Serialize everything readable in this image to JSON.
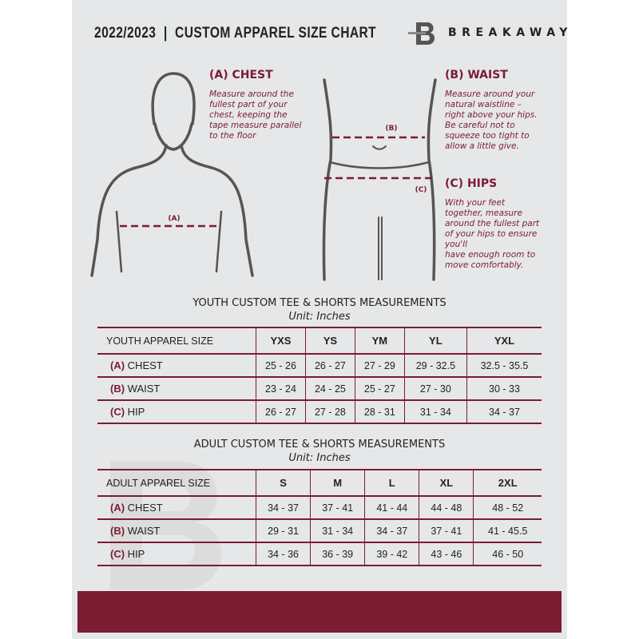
{
  "header": {
    "title": "2022/2023  |  CUSTOM APPAREL SIZE CHART",
    "brand": "BREAKAWAY",
    "logo_letter": "B"
  },
  "colors": {
    "accent": "#7a1c32",
    "background": "#e6e7e8"
  },
  "guide": {
    "chest": {
      "heading": "(A) CHEST",
      "marker": "(A)",
      "text": [
        "Measure around the",
        "fullest part of your",
        "chest, keeping the",
        "tape measure parallel",
        "to the floor"
      ]
    },
    "waist": {
      "heading": "(B) WAIST",
      "marker": "(B)",
      "text": [
        "Measure around your",
        "natural waistline –",
        "right above your hips.",
        "Be careful not to",
        "squeeze too tight to",
        "allow a little give."
      ]
    },
    "hips": {
      "heading": "(C) HIPS",
      "marker": "(C)",
      "text": [
        "With your feet",
        "together, measure",
        "around the fullest part",
        "of your hips to ensure",
        "you'll",
        "have enough room to",
        "move comfortably."
      ]
    }
  },
  "youth": {
    "title": "YOUTH CUSTOM TEE & SHORTS MEASUREMENTS",
    "unit": "Unit: Inches",
    "header": [
      "YOUTH APPAREL SIZE",
      "YXS",
      "YS",
      "YM",
      "YL",
      "YXL"
    ],
    "rows": [
      {
        "code": "(A)",
        "name": "CHEST",
        "values": [
          "25 - 26",
          "26 - 27",
          "27 - 29",
          "29 - 32.5",
          "32.5 - 35.5"
        ]
      },
      {
        "code": "(B)",
        "name": "WAIST",
        "values": [
          "23 - 24",
          "24 - 25",
          "25 - 27",
          "27 - 30",
          "30 - 33"
        ]
      },
      {
        "code": "(C)",
        "name": "HIP",
        "values": [
          "26 - 27",
          "27 - 28",
          "28 - 31",
          "31 - 34",
          "34 - 37"
        ]
      }
    ]
  },
  "adult": {
    "title": "ADULT CUSTOM TEE & SHORTS MEASUREMENTS",
    "unit": "Unit: Inches",
    "header": [
      "ADULT APPAREL SIZE",
      "S",
      "M",
      "L",
      "XL",
      "2XL"
    ],
    "rows": [
      {
        "code": "(A)",
        "name": "CHEST",
        "values": [
          "34 - 37",
          "37 - 41",
          "41 - 44",
          "44 - 48",
          "48 - 52"
        ]
      },
      {
        "code": "(B)",
        "name": "WAIST",
        "values": [
          "29 - 31",
          "31 - 34",
          "34 - 37",
          "37 - 41",
          "41 - 45.5"
        ]
      },
      {
        "code": "(C)",
        "name": "HIP",
        "values": [
          "34 - 36",
          "36 - 39",
          "39 - 42",
          "43 - 46",
          "46 - 50"
        ]
      }
    ]
  }
}
